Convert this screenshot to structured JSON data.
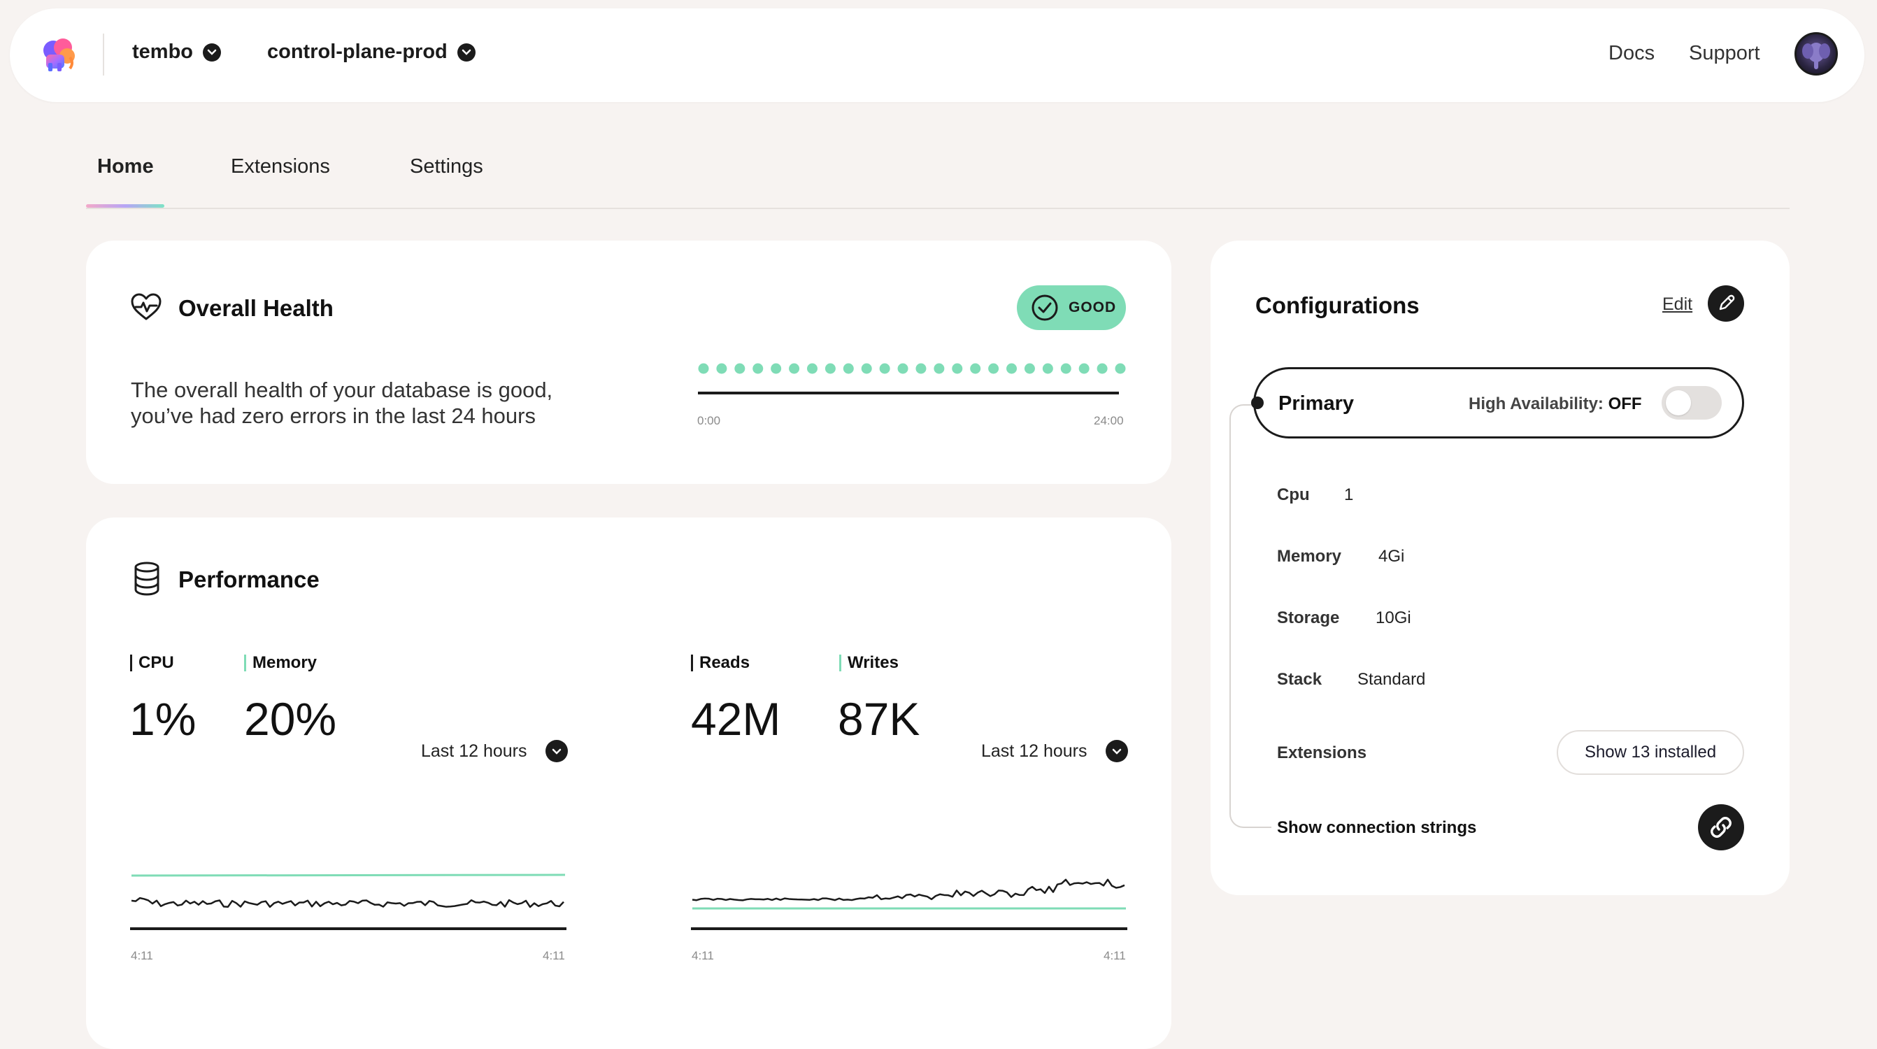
{
  "topbar": {
    "org": "tembo",
    "instance": "control-plane-prod",
    "links": {
      "docs": "Docs",
      "support": "Support"
    }
  },
  "tabs": [
    {
      "label": "Home",
      "active": true
    },
    {
      "label": "Extensions",
      "active": false
    },
    {
      "label": "Settings",
      "active": false
    }
  ],
  "health": {
    "title": "Overall Health",
    "badge": "GOOD",
    "line1": "The overall health of your database is good,",
    "line2": "you’ve had zero errors in the last 24 hours",
    "timeline_start": "0:00",
    "timeline_end": "24:00",
    "dot_count": 24,
    "dot_color": "#7fdcb6"
  },
  "performance": {
    "title": "Performance",
    "left": {
      "metrics": [
        {
          "label": "CPU",
          "value": "1%",
          "color": "#1b1b1b"
        },
        {
          "label": "Memory",
          "value": "20%",
          "color": "#7fdcb6"
        }
      ],
      "range": "Last 12 hours",
      "axis_start": "4:11",
      "axis_end": "4:11"
    },
    "right": {
      "metrics": [
        {
          "label": "Reads",
          "value": "42M",
          "color": "#1b1b1b"
        },
        {
          "label": "Writes",
          "value": "87K",
          "color": "#7fdcb6"
        }
      ],
      "range": "Last 12 hours",
      "axis_start": "4:11",
      "axis_end": "4:11"
    }
  },
  "configurations": {
    "title": "Configurations",
    "edit": "Edit",
    "primary": "Primary",
    "ha_label": "High Availability: ",
    "ha_value": "OFF",
    "rows": [
      {
        "key": "Cpu",
        "value": "1"
      },
      {
        "key": "Memory",
        "value": "4Gi"
      },
      {
        "key": "Storage",
        "value": "10Gi"
      },
      {
        "key": "Stack",
        "value": "Standard"
      }
    ],
    "extensions_label": "Extensions",
    "extensions_button": "Show 13 installed",
    "connection_strings": "Show connection strings"
  }
}
